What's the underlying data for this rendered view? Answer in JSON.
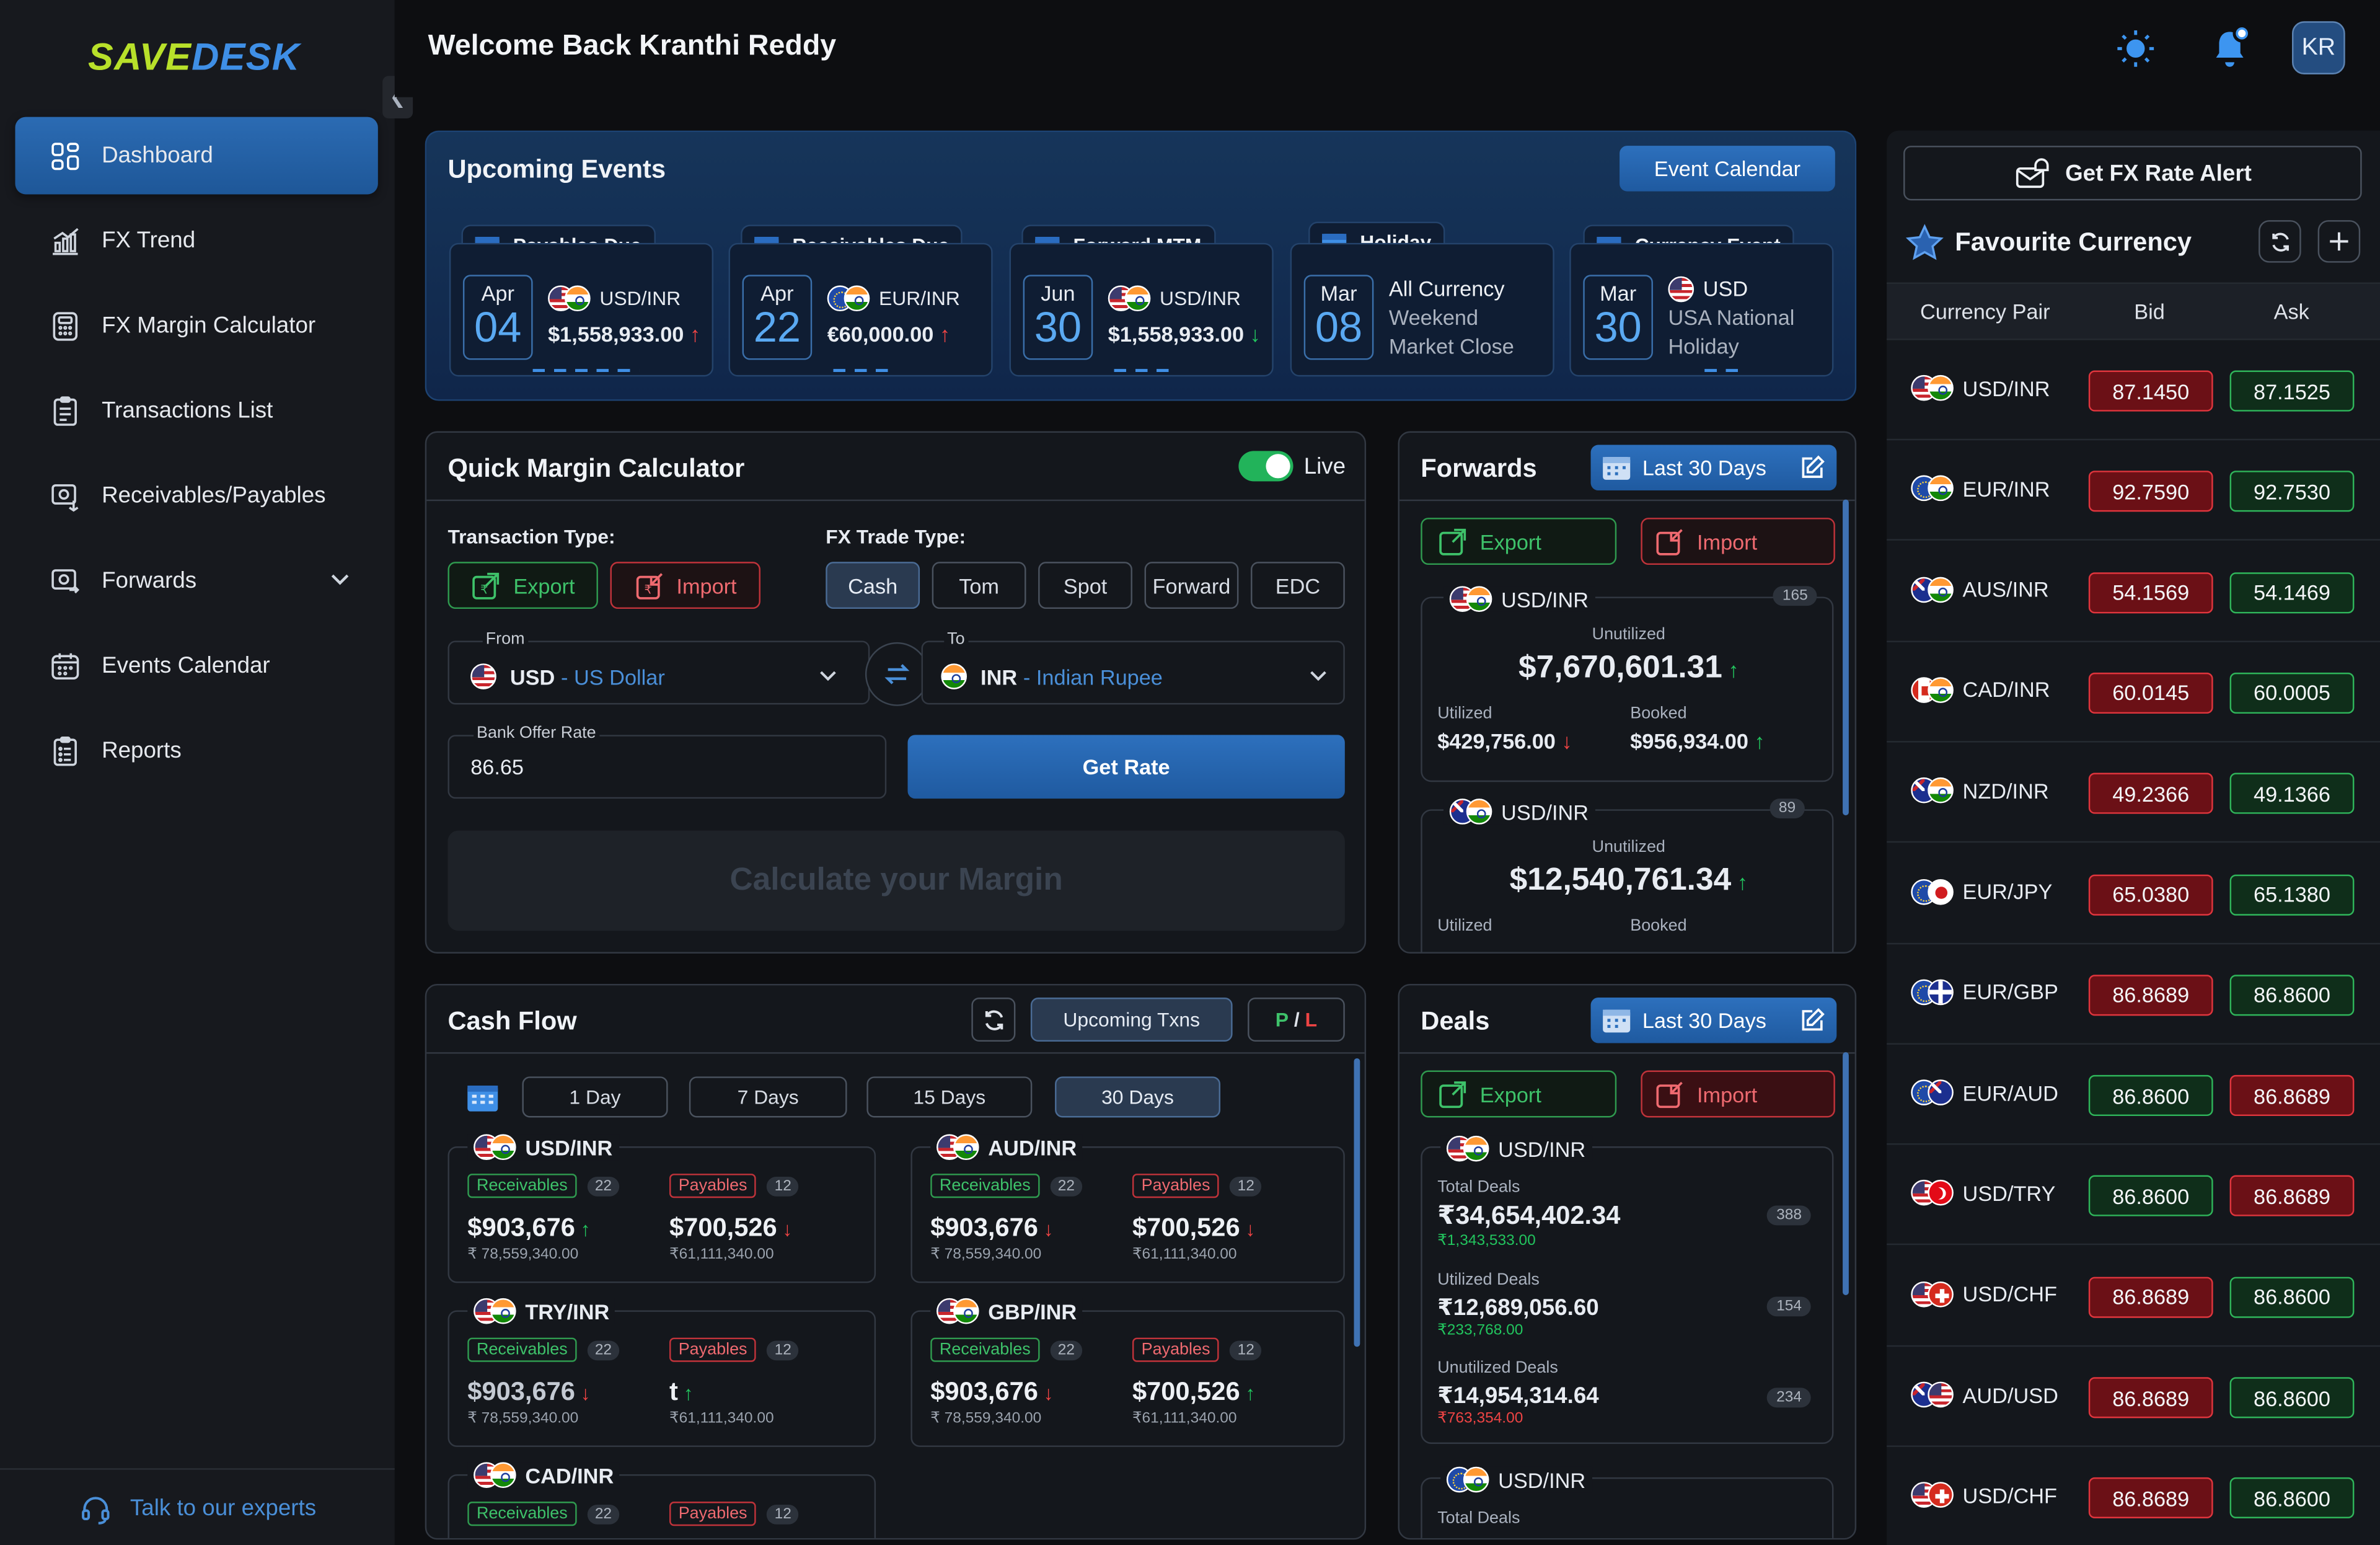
{
  "app": {
    "logo_part1": "SAVE",
    "logo_part2": "DESK",
    "welcome": "Welcome Back Kranthi Reddy",
    "avatar": "KR"
  },
  "sidebar": {
    "items": [
      {
        "label": "Dashboard",
        "icon": "dashboard-icon"
      },
      {
        "label": "FX Trend",
        "icon": "trend-icon"
      },
      {
        "label": "FX Margin Calculator",
        "icon": "calculator-icon"
      },
      {
        "label": "Transactions List",
        "icon": "list-icon"
      },
      {
        "label": "Receivables/Payables",
        "icon": "exchange-icon"
      },
      {
        "label": "Forwards",
        "icon": "forwards-icon"
      },
      {
        "label": "Events Calendar",
        "icon": "calendar-icon"
      },
      {
        "label": "Reports",
        "icon": "reports-icon"
      }
    ],
    "talk": "Talk to our experts"
  },
  "events": {
    "title": "Upcoming Events",
    "calendar_btn": "Event Calendar",
    "cards": [
      {
        "tab": "Payables Due",
        "month": "Apr",
        "day": "04",
        "pair": "USD/INR",
        "amount": "$1,558,933.00",
        "dir": "up"
      },
      {
        "tab": "Receivables Due",
        "month": "Apr",
        "day": "22",
        "pair": "EUR/INR",
        "amount": "€60,000.00",
        "dir": "up"
      },
      {
        "tab": "Forward MTM",
        "month": "Jun",
        "day": "30",
        "pair": "USD/INR",
        "amount": "$1,558,933.00",
        "dir": "dn"
      },
      {
        "tab": "Holiday",
        "month": "Mar",
        "day": "08",
        "l1": "All Currency",
        "l2": "Weekend",
        "l3": "Market Close"
      },
      {
        "tab": "Currency Event",
        "month": "Mar",
        "day": "30",
        "l1": "USD",
        "l2": "USA National",
        "l3": "Holiday"
      }
    ]
  },
  "qmc": {
    "title": "Quick Margin Calculator",
    "live": "Live",
    "txn_type_label": "Transaction Type:",
    "fx_type_label": "FX Trade Type:",
    "export": "Export",
    "import": "Import",
    "trade_types": [
      "Cash",
      "Tom",
      "Spot",
      "Forward",
      "EDC"
    ],
    "from_label": "From",
    "from_code": "USD",
    "from_name": "US Dollar",
    "to_label": "To",
    "to_code": "INR",
    "to_name": "Indian Rupee",
    "rate_label": "Bank Offer Rate",
    "rate_value": "86.65",
    "get_rate": "Get Rate",
    "calc_placeholder": "Calculate your Margin"
  },
  "forwards": {
    "title": "Forwards",
    "range": "Last 30 Days",
    "export": "Export",
    "import": "Import",
    "cards": [
      {
        "pair": "USD/INR",
        "count": "165",
        "unutilized_label": "Unutilized",
        "unutilized": "$7,670,601.31",
        "utilized_label": "Utilized",
        "utilized": "$429,756.00",
        "booked_label": "Booked",
        "booked": "$956,934.00"
      },
      {
        "pair": "USD/INR",
        "count": "89",
        "unutilized_label": "Unutilized",
        "unutilized": "$12,540,761.34",
        "utilized_label": "Utilized",
        "booked_label": "Booked"
      }
    ]
  },
  "cashflow": {
    "title": "Cash Flow",
    "upcoming": "Upcoming Txns",
    "pl_p": "P",
    "pl_sep": " / ",
    "pl_l": "L",
    "ranges": [
      "1 Day",
      "7 Days",
      "15 Days",
      "30 Days"
    ],
    "receivables": "Receivables",
    "payables": "Payables",
    "cards": [
      {
        "pair": "USD/INR",
        "rcount": "22",
        "pcount": "12",
        "ramt": "$903,676",
        "rsub": "₹ 78,559,340.00",
        "pamt": "$700,526",
        "psub": "₹61,111,340.00",
        "rdir": "up",
        "pdir": "dn"
      },
      {
        "pair": "AUD/INR",
        "rcount": "22",
        "pcount": "12",
        "ramt": "$903,676",
        "rsub": "₹ 78,559,340.00",
        "pamt": "$700,526",
        "psub": "₹61,111,340.00",
        "rdir": "dn",
        "pdir": "dn"
      },
      {
        "pair": "TRY/INR",
        "rcount": "22",
        "pcount": "12",
        "ramt": "$903,676",
        "rsub": "₹ 78,559,340.00",
        "pamt": "t",
        "psub": "₹61,111,340.00",
        "rdir": "dn",
        "pdir": "up"
      },
      {
        "pair": "GBP/INR",
        "rcount": "22",
        "pcount": "12",
        "ramt": "$903,676",
        "rsub": "₹ 78,559,340.00",
        "pamt": "$700,526",
        "psub": "₹61,111,340.00",
        "rdir": "dn",
        "pdir": "up"
      },
      {
        "pair": "CAD/INR",
        "rcount": "22",
        "pcount": "12"
      }
    ]
  },
  "deals": {
    "title": "Deals",
    "range": "Last 30 Days",
    "export": "Export",
    "import": "Import",
    "card1": {
      "pair": "USD/INR",
      "total_label": "Total Deals",
      "total": "₹34,654,402.34",
      "total_sub": "₹1,343,533.00",
      "total_count": "388",
      "util_label": "Utilized Deals",
      "util": "₹12,689,056.60",
      "util_sub": "₹233,768.00",
      "util_count": "154",
      "unutil_label": "Unutilized Deals",
      "unutil": "₹14,954,314.64",
      "unutil_sub": "₹763,354.00",
      "unutil_count": "234"
    },
    "card2": {
      "pair": "USD/INR",
      "total_label": "Total Deals"
    }
  },
  "rates": {
    "alert": "Get FX Rate Alert",
    "fav_title": "Favourite Currency",
    "col_pair": "Currency Pair",
    "col_bid": "Bid",
    "col_ask": "Ask",
    "rows": [
      {
        "pair": "USD/INR",
        "f1": "us",
        "f2": "in",
        "bid": "87.1450",
        "ask": "87.1525",
        "bc": "r",
        "ac": "g"
      },
      {
        "pair": "EUR/INR",
        "f1": "eu",
        "f2": "in",
        "bid": "92.7590",
        "ask": "92.7530",
        "bc": "r",
        "ac": "g"
      },
      {
        "pair": "AUS/INR",
        "f1": "au",
        "f2": "in",
        "bid": "54.1569",
        "ask": "54.1469",
        "bc": "r",
        "ac": "g"
      },
      {
        "pair": "CAD/INR",
        "f1": "ca",
        "f2": "in",
        "bid": "60.0145",
        "ask": "60.0005",
        "bc": "r",
        "ac": "g"
      },
      {
        "pair": "NZD/INR",
        "f1": "nz",
        "f2": "in",
        "bid": "49.2366",
        "ask": "49.1366",
        "bc": "r",
        "ac": "g"
      },
      {
        "pair": "EUR/JPY",
        "f1": "eu",
        "f2": "jp",
        "bid": "65.0380",
        "ask": "65.1380",
        "bc": "r",
        "ac": "g"
      },
      {
        "pair": "EUR/GBP",
        "f1": "eu",
        "f2": "gb",
        "bid": "86.8689",
        "ask": "86.8600",
        "bc": "r",
        "ac": "g"
      },
      {
        "pair": "EUR/AUD",
        "f1": "eu",
        "f2": "au",
        "bid": "86.8600",
        "ask": "86.8689",
        "bc": "g",
        "ac": "r"
      },
      {
        "pair": "USD/TRY",
        "f1": "us",
        "f2": "tr",
        "bid": "86.8600",
        "ask": "86.8689",
        "bc": "g",
        "ac": "r"
      },
      {
        "pair": "USD/CHF",
        "f1": "us",
        "f2": "ch",
        "bid": "86.8689",
        "ask": "86.8600",
        "bc": "r",
        "ac": "g"
      },
      {
        "pair": "AUD/USD",
        "f1": "au",
        "f2": "us",
        "bid": "86.8689",
        "ask": "86.8600",
        "bc": "r",
        "ac": "g"
      },
      {
        "pair": "USD/CHF",
        "f1": "us",
        "f2": "ch",
        "bid": "86.8689",
        "ask": "86.8600",
        "bc": "r",
        "ac": "g"
      }
    ]
  }
}
